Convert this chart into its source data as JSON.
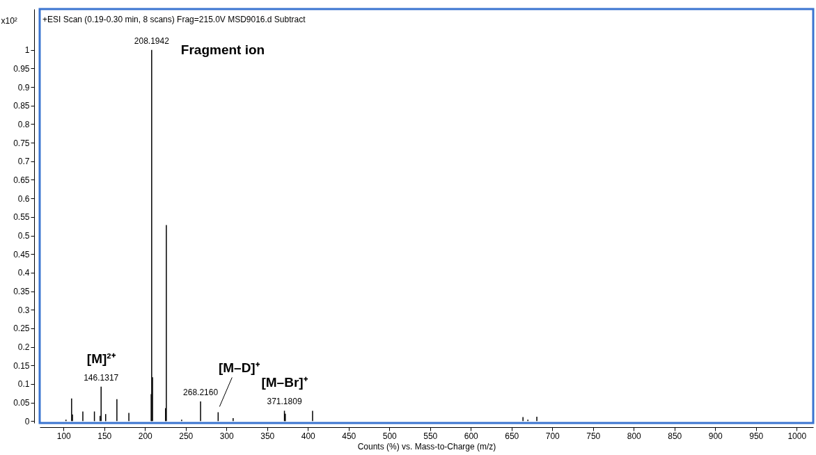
{
  "chart_data": {
    "type": "bar",
    "title": "+ESI Scan (0.19-0.30 min, 8 scans) Frag=215.0V MSD9016.d  Subtract",
    "xlabel": "Counts (%) vs. Mass-to-Charge (m/z)",
    "ylabel": "x10²",
    "x": [
      103,
      109.9,
      111,
      123.7,
      130,
      137.9,
      144.9,
      146.1317,
      151.7,
      165.5,
      180.2,
      195,
      207.6,
      208.1942,
      209.3,
      225.2,
      226.2,
      245,
      254,
      268.216,
      289.8,
      308.2,
      371.1809,
      372.2,
      405.7,
      455,
      664,
      670,
      681
    ],
    "series": [
      {
        "color": "#000000",
        "values": [
          0.004,
          0.061,
          0.018,
          0.026,
          null,
          0.026,
          0.014,
          0.093,
          0.019,
          0.059,
          0.022,
          null,
          0.073,
          1.0,
          0.118,
          0.035,
          0.528,
          0.004,
          null,
          0.053,
          0.024,
          0.008,
          0.028,
          0.02,
          0.028,
          null,
          0.011,
          0.004,
          0.012
        ]
      }
    ],
    "xlim": [
      75,
      1016
    ],
    "ylim": [
      -0.005,
      1.11
    ],
    "xticks": [
      100,
      150,
      200,
      250,
      300,
      350,
      400,
      450,
      500,
      550,
      600,
      650,
      700,
      750,
      800,
      850,
      900,
      950,
      1000
    ],
    "yticks": [
      0,
      0.05,
      0.1,
      0.15,
      0.2,
      0.25,
      0.3,
      0.35,
      0.4,
      0.45,
      0.5,
      0.55,
      0.6,
      0.65,
      0.7,
      0.75,
      0.8,
      0.85,
      0.9,
      0.95,
      1
    ],
    "grid": false,
    "annotations": [
      {
        "text": "208.1942",
        "x": 208.1942,
        "y": 1.0
      },
      {
        "text": "Fragment ion",
        "x": 208.1942,
        "y": 1.0
      },
      {
        "text": "146.1317",
        "x": 146.1317,
        "y": 0.093
      },
      {
        "text": "[M]²⁺",
        "x": 146.1317,
        "y": 0.093
      },
      {
        "text": "268.2160",
        "x": 268.216,
        "y": 0.053
      },
      {
        "text": "[M–D]⁺",
        "x": 289.8,
        "y": 0.024
      },
      {
        "text": "371.1809",
        "x": 371.1809,
        "y": 0.028
      },
      {
        "text": "[M–Br]⁺",
        "x": 371.1809,
        "y": 0.028
      }
    ]
  }
}
